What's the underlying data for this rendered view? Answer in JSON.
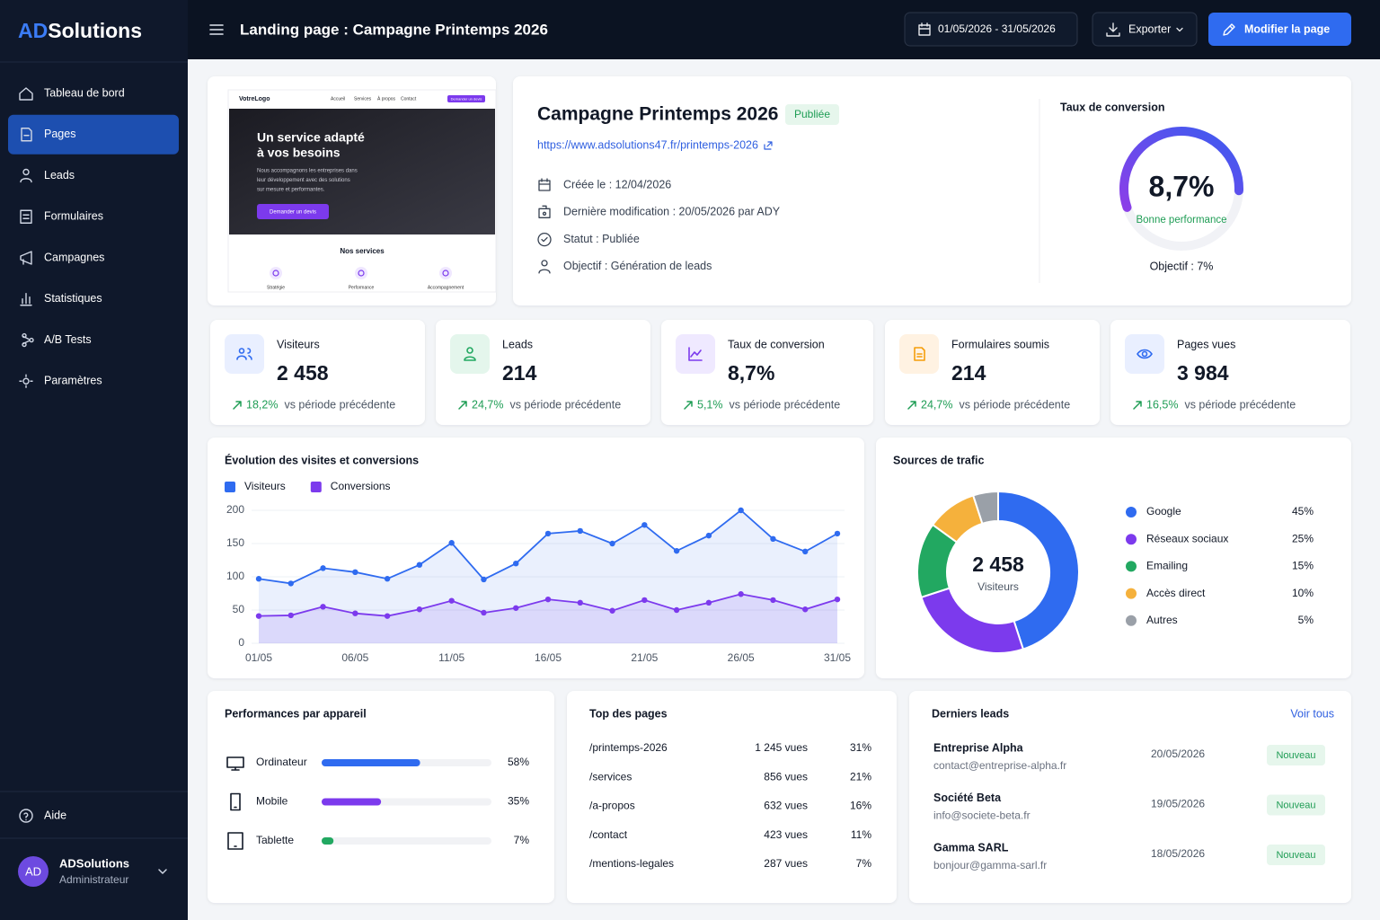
{
  "brand": {
    "prefix": "AD",
    "name": "Solutions"
  },
  "nav": [
    "Tableau de bord",
    "Pages",
    "Leads",
    "Formulaires",
    "Campagnes",
    "Statistiques",
    "A/B Tests",
    "Paramètres"
  ],
  "help": "Aide",
  "user": {
    "initials": "AD",
    "name": "ADSolutions",
    "role": "Administrateur"
  },
  "header": {
    "title": "Landing page : Campagne Printemps 2026",
    "date_range": "01/05/2026 - 31/05/2026",
    "export": "Exporter",
    "edit": "Modifier la page"
  },
  "preview": {
    "logo": "VotreLogo",
    "menu": [
      "Accueil",
      "Services",
      "À propos",
      "Contact"
    ],
    "cta_top": "Demander un devis",
    "hero_title": [
      "Un service adapté",
      "à vos besoins"
    ],
    "hero_text": [
      "Nous accompagnons les entreprises dans",
      "leur développement avec des solutions",
      "sur mesure et performantes."
    ],
    "hero_button": "Demander un devis",
    "services_title": "Nos services",
    "services": [
      "Stratégie",
      "Performance",
      "Accompagnement"
    ]
  },
  "campaign": {
    "title": "Campagne Printemps 2026",
    "status_badge": "Publiée",
    "url": "https://www.adsolutions47.fr/printemps-2026",
    "details": [
      "Créée le : 12/04/2026",
      "Dernière modification : 20/05/2026 par ADY",
      "Statut : Publiée",
      "Objectif : Génération de leads"
    ]
  },
  "conversion": {
    "title": "Taux de conversion",
    "value": "8,7%",
    "note": "Bonne performance",
    "goal": "Objectif : 7%"
  },
  "kpis": [
    {
      "label": "Visiteurs",
      "value": "2 458",
      "change": "18,2%",
      "compare": "vs période précédente"
    },
    {
      "label": "Leads",
      "value": "214",
      "change": "24,7%",
      "compare": "vs période précédente"
    },
    {
      "label": "Taux de conversion",
      "value": "8,7%",
      "change": "5,1%",
      "compare": "vs période précédente"
    },
    {
      "label": "Formulaires soumis",
      "value": "214",
      "change": "24,7%",
      "compare": "vs période précédente"
    },
    {
      "label": "Pages vues",
      "value": "3 984",
      "change": "16,5%",
      "compare": "vs période précédente"
    }
  ],
  "chart_data": [
    {
      "type": "line",
      "title": "Évolution des visites et conversions",
      "categories": [
        "01/05",
        null,
        null,
        "06/05",
        null,
        null,
        "11/05",
        null,
        null,
        "16/05",
        null,
        null,
        "21/05",
        null,
        null,
        "26/05",
        null,
        null,
        "31/05"
      ],
      "series": [
        {
          "name": "Visiteurs",
          "color": "#2f6bf0",
          "values": [
            97,
            90,
            113,
            107,
            97,
            118,
            151,
            96,
            120,
            165,
            169,
            150,
            178,
            139,
            162,
            200,
            157,
            138,
            165
          ]
        },
        {
          "name": "Conversions",
          "color": "#7c3aed",
          "values": [
            41,
            42,
            55,
            45,
            41,
            51,
            64,
            46,
            53,
            66,
            61,
            49,
            65,
            50,
            61,
            74,
            65,
            51,
            66
          ]
        }
      ],
      "ylim": [
        0,
        200
      ],
      "yticks": [
        0,
        50,
        100,
        150,
        200
      ],
      "grid": true
    },
    {
      "type": "pie",
      "title": "Sources de trafic",
      "categories": [
        "Google",
        "Réseaux sociaux",
        "Emailing",
        "Accès direct",
        "Autres"
      ],
      "values": [
        45,
        25,
        15,
        10,
        5
      ],
      "value_labels": [
        "45%",
        "25%",
        "15%",
        "10%",
        "5%"
      ],
      "colors": [
        "#2f6bf0",
        "#7c3aed",
        "#22a861",
        "#f5b13c",
        "#9aa0a8"
      ],
      "center_value": "2 458",
      "center_label": "Visiteurs"
    },
    {
      "type": "bar",
      "orientation": "horizontal",
      "title": "Performances par appareil",
      "categories": [
        "Ordinateur",
        "Mobile",
        "Tablette"
      ],
      "values": [
        58,
        35,
        7
      ],
      "value_labels": [
        "58%",
        "35%",
        "7%"
      ],
      "colors": [
        "#2f6bf0",
        "#7c3aed",
        "#22a861"
      ],
      "xlim": [
        0,
        100
      ]
    }
  ],
  "top_pages": {
    "title": "Top des pages",
    "rows": [
      [
        "/printemps-2026",
        "1 245 vues",
        "31%"
      ],
      [
        "/services",
        "856 vues",
        "21%"
      ],
      [
        "/a-propos",
        "632 vues",
        "16%"
      ],
      [
        "/contact",
        "423 vues",
        "11%"
      ],
      [
        "/mentions-legales",
        "287 vues",
        "7%"
      ]
    ]
  },
  "leads": {
    "title": "Derniers leads",
    "link": "Voir tous",
    "rows": [
      {
        "name": "Entreprise Alpha",
        "email": "contact@entreprise-alpha.fr",
        "date": "20/05/2026",
        "badge": "Nouveau"
      },
      {
        "name": "Société Beta",
        "email": "info@societe-beta.fr",
        "date": "19/05/2026",
        "badge": "Nouveau"
      },
      {
        "name": "Gamma SARL",
        "email": "bonjour@gamma-sarl.fr",
        "date": "18/05/2026",
        "badge": "Nouveau"
      }
    ]
  }
}
